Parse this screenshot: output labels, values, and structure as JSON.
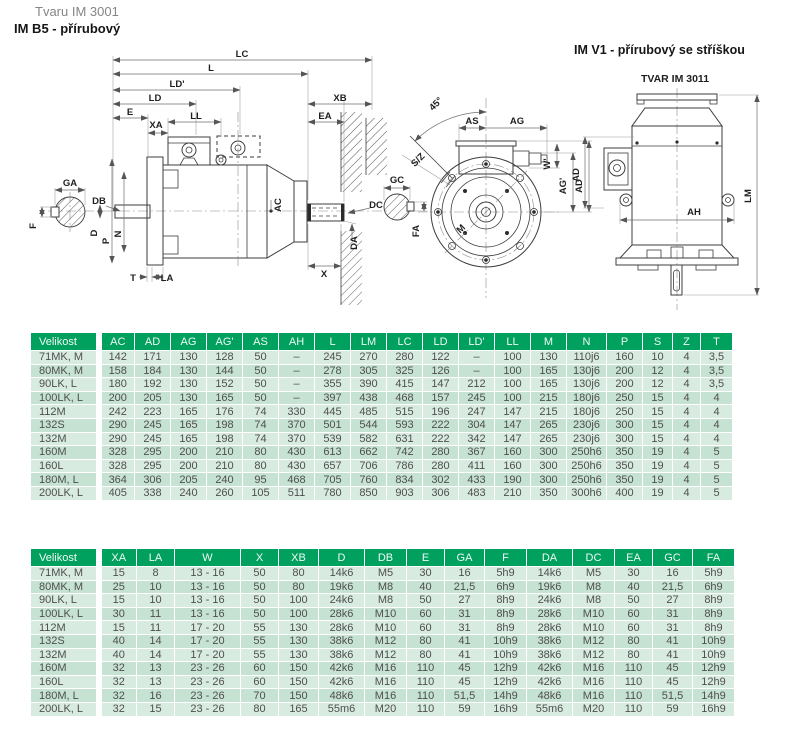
{
  "page": {
    "subtitle": "Tvaru IM 3001",
    "title_b5": "IM B5 - přírubový",
    "title_v1": "IM V1 - přírubový se stříškou",
    "tvar_label": "TVAR IM 3011"
  },
  "colors": {
    "header_green": "#00a05e",
    "row_light": "#d8ebe0",
    "row_dark": "#c6e2d2"
  },
  "diagram_b5": {
    "labels": {
      "lc": "LC",
      "l": "L",
      "ld_ap": "LD'",
      "ld": "LD",
      "e": "E",
      "xa": "XA",
      "ll": "LL",
      "xb": "XB",
      "ea": "EA",
      "ga": "GA",
      "db": "DB",
      "f": "F",
      "d": "D",
      "p": "P",
      "n": "N",
      "ac": "AC",
      "dc": "DC",
      "da": "DA",
      "x": "X",
      "t": "T",
      "la": "LA"
    }
  },
  "diagram_front": {
    "labels": {
      "deg45": "45°",
      "as": "AS",
      "ag": "AG",
      "gc": "GC",
      "sz": "S/Z",
      "w_ap": "W'",
      "ag_ap": "AG'",
      "ad": "AD",
      "fa": "FA",
      "m": "M"
    }
  },
  "diagram_v1": {
    "labels": {
      "ad": "AD",
      "ah": "AH",
      "lm": "LM"
    }
  },
  "tables": [
    {
      "columns": [
        "Velikost",
        "AC",
        "AD",
        "AG",
        "AG'",
        "AS",
        "AH",
        "L",
        "LM",
        "LC",
        "LD",
        "LD'",
        "LL",
        "M",
        "N",
        "P",
        "S",
        "Z",
        "T"
      ],
      "rows": [
        [
          "71MK, M",
          "142",
          "171",
          "130",
          "128",
          "50",
          "–",
          "245",
          "270",
          "280",
          "122",
          "–",
          "100",
          "130",
          "110j6",
          "160",
          "10",
          "4",
          "3,5"
        ],
        [
          "80MK, M",
          "158",
          "184",
          "130",
          "144",
          "50",
          "–",
          "278",
          "305",
          "325",
          "126",
          "–",
          "100",
          "165",
          "130j6",
          "200",
          "12",
          "4",
          "3,5"
        ],
        [
          "90LK, L",
          "180",
          "192",
          "130",
          "152",
          "50",
          "–",
          "355",
          "390",
          "415",
          "147",
          "212",
          "100",
          "165",
          "130j6",
          "200",
          "12",
          "4",
          "3,5"
        ],
        [
          "100LK, L",
          "200",
          "205",
          "130",
          "165",
          "50",
          "–",
          "397",
          "438",
          "468",
          "157",
          "245",
          "100",
          "215",
          "180j6",
          "250",
          "15",
          "4",
          "4"
        ],
        [
          "112M",
          "242",
          "223",
          "165",
          "176",
          "74",
          "330",
          "445",
          "485",
          "515",
          "196",
          "247",
          "147",
          "215",
          "180j6",
          "250",
          "15",
          "4",
          "4"
        ],
        [
          "132S",
          "290",
          "245",
          "165",
          "198",
          "74",
          "370",
          "501",
          "544",
          "593",
          "222",
          "304",
          "147",
          "265",
          "230j6",
          "300",
          "15",
          "4",
          "4"
        ],
        [
          "132M",
          "290",
          "245",
          "165",
          "198",
          "74",
          "370",
          "539",
          "582",
          "631",
          "222",
          "342",
          "147",
          "265",
          "230j6",
          "300",
          "15",
          "4",
          "4"
        ],
        [
          "160M",
          "328",
          "295",
          "200",
          "210",
          "80",
          "430",
          "613",
          "662",
          "742",
          "280",
          "367",
          "160",
          "300",
          "250h6",
          "350",
          "19",
          "4",
          "5"
        ],
        [
          "160L",
          "328",
          "295",
          "200",
          "210",
          "80",
          "430",
          "657",
          "706",
          "786",
          "280",
          "411",
          "160",
          "300",
          "250h6",
          "350",
          "19",
          "4",
          "5"
        ],
        [
          "180M, L",
          "364",
          "306",
          "205",
          "240",
          "95",
          "468",
          "705",
          "760",
          "834",
          "302",
          "433",
          "190",
          "300",
          "250h6",
          "350",
          "19",
          "4",
          "5"
        ],
        [
          "200LK, L",
          "405",
          "338",
          "240",
          "260",
          "105",
          "511",
          "780",
          "850",
          "903",
          "306",
          "483",
          "210",
          "350",
          "300h6",
          "400",
          "19",
          "4",
          "5"
        ]
      ]
    },
    {
      "columns": [
        "Velikost",
        "XA",
        "LA",
        "W",
        "X",
        "XB",
        "D",
        "DB",
        "E",
        "GA",
        "F",
        "DA",
        "DC",
        "EA",
        "GC",
        "FA"
      ],
      "rows": [
        [
          "71MK, M",
          "15",
          "8",
          "13 - 16",
          "50",
          "80",
          "14k6",
          "M5",
          "30",
          "16",
          "5h9",
          "14k6",
          "M5",
          "30",
          "16",
          "5h9"
        ],
        [
          "80MK, M",
          "25",
          "10",
          "13 - 16",
          "50",
          "80",
          "19k6",
          "M8",
          "40",
          "21,5",
          "6h9",
          "19k6",
          "M8",
          "40",
          "21,5",
          "6h9"
        ],
        [
          "90LK, L",
          "15",
          "10",
          "13 - 16",
          "50",
          "100",
          "24k6",
          "M8",
          "50",
          "27",
          "8h9",
          "24k6",
          "M8",
          "50",
          "27",
          "8h9"
        ],
        [
          "100LK, L",
          "30",
          "11",
          "13 - 16",
          "50",
          "100",
          "28k6",
          "M10",
          "60",
          "31",
          "8h9",
          "28k6",
          "M10",
          "60",
          "31",
          "8h9"
        ],
        [
          "112M",
          "15",
          "11",
          "17 - 20",
          "55",
          "130",
          "28k6",
          "M10",
          "60",
          "31",
          "8h9",
          "28k6",
          "M10",
          "60",
          "31",
          "8h9"
        ],
        [
          "132S",
          "40",
          "14",
          "17 - 20",
          "55",
          "130",
          "38k6",
          "M12",
          "80",
          "41",
          "10h9",
          "38k6",
          "M12",
          "80",
          "41",
          "10h9"
        ],
        [
          "132M",
          "40",
          "14",
          "17 - 20",
          "55",
          "130",
          "38k6",
          "M12",
          "80",
          "41",
          "10h9",
          "38k6",
          "M12",
          "80",
          "41",
          "10h9"
        ],
        [
          "160M",
          "32",
          "13",
          "23 - 26",
          "60",
          "150",
          "42k6",
          "M16",
          "110",
          "45",
          "12h9",
          "42k6",
          "M16",
          "110",
          "45",
          "12h9"
        ],
        [
          "160L",
          "32",
          "13",
          "23 - 26",
          "60",
          "150",
          "42k6",
          "M16",
          "110",
          "45",
          "12h9",
          "42k6",
          "M16",
          "110",
          "45",
          "12h9"
        ],
        [
          "180M, L",
          "32",
          "16",
          "23 - 26",
          "70",
          "150",
          "48k6",
          "M16",
          "110",
          "51,5",
          "14h9",
          "48k6",
          "M16",
          "110",
          "51,5",
          "14h9"
        ],
        [
          "200LK, L",
          "32",
          "15",
          "23 - 26",
          "80",
          "165",
          "55m6",
          "M20",
          "110",
          "59",
          "16h9",
          "55m6",
          "M20",
          "110",
          "59",
          "16h9"
        ]
      ]
    }
  ]
}
